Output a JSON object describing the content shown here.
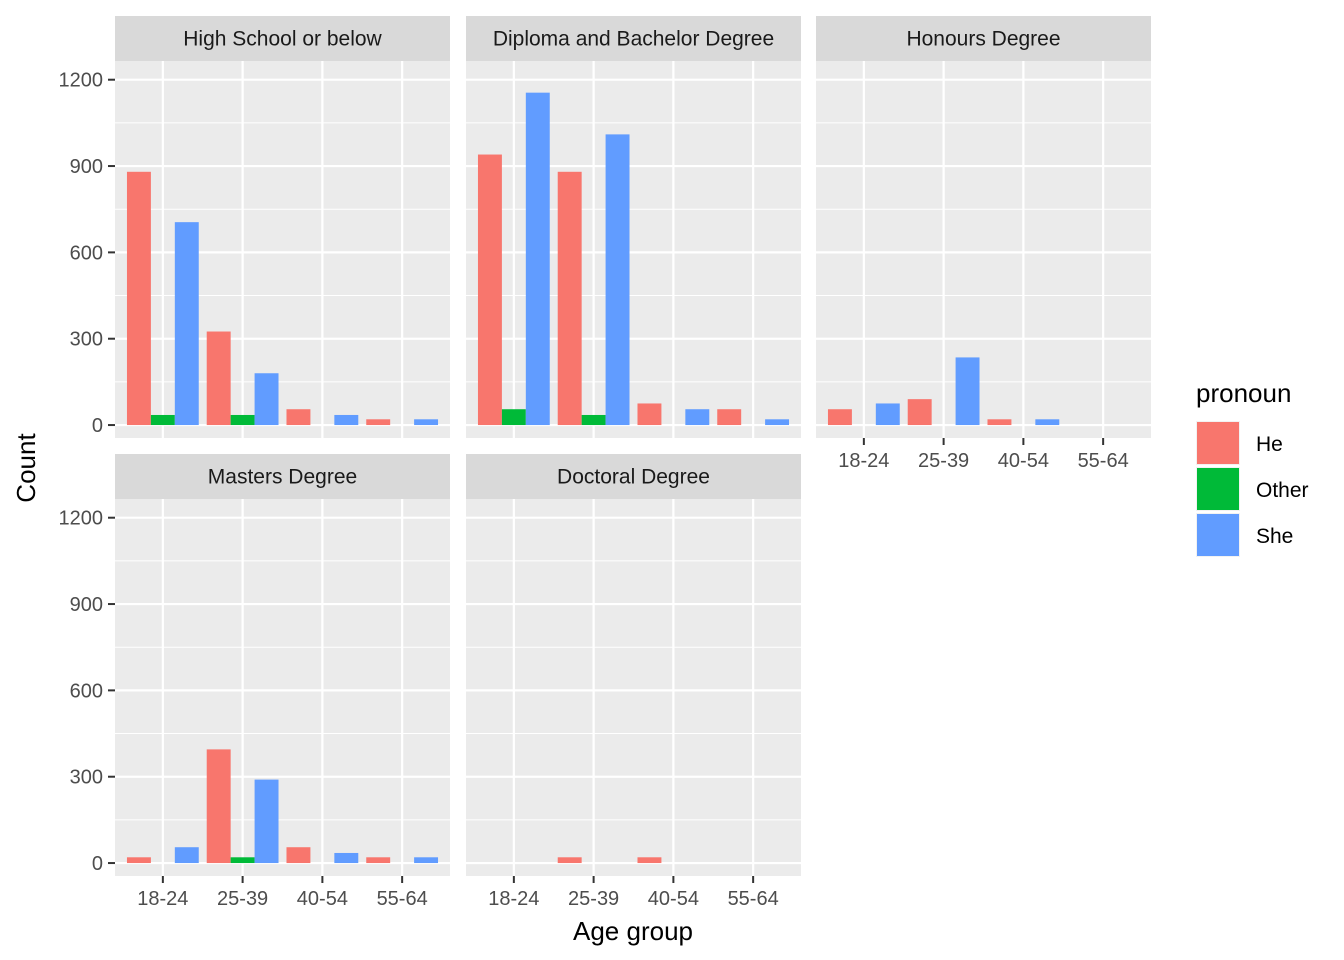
{
  "chart_data": {
    "type": "bar",
    "layout": "faceted",
    "xlabel": "Age group",
    "ylabel": "Count",
    "ylim": [
      -45,
      1265
    ],
    "y_ticks": [
      0,
      300,
      600,
      900,
      1200
    ],
    "categories": [
      "18-24",
      "25-39",
      "40-54",
      "55-64"
    ],
    "legend": {
      "title": "pronoun",
      "position": "right",
      "entries": [
        {
          "name": "He",
          "color": "#F8766D"
        },
        {
          "name": "Other",
          "color": "#00BA38"
        },
        {
          "name": "She",
          "color": "#619CFF"
        }
      ]
    },
    "grid": true,
    "facets": [
      {
        "title": "High School or below",
        "bars": {
          "He": [
            880,
            325,
            55,
            20
          ],
          "Other": [
            35,
            35,
            null,
            null
          ],
          "She": [
            705,
            180,
            35,
            20
          ]
        }
      },
      {
        "title": "Diploma and Bachelor Degree",
        "bars": {
          "He": [
            940,
            880,
            75,
            55
          ],
          "Other": [
            55,
            35,
            null,
            null
          ],
          "She": [
            1155,
            1010,
            55,
            20
          ]
        }
      },
      {
        "title": "Honours Degree",
        "bars": {
          "He": [
            55,
            90,
            20,
            null
          ],
          "Other": [
            null,
            null,
            null,
            null
          ],
          "She": [
            75,
            235,
            20,
            null
          ]
        }
      },
      {
        "title": "Masters Degree",
        "bars": {
          "He": [
            20,
            395,
            55,
            20
          ],
          "Other": [
            null,
            20,
            null,
            null
          ],
          "She": [
            55,
            290,
            35,
            20
          ]
        }
      },
      {
        "title": "Doctoral Degree",
        "bars": {
          "He": [
            null,
            20,
            20,
            null
          ],
          "Other": [
            null,
            null,
            null,
            null
          ],
          "She": [
            null,
            null,
            null,
            null
          ]
        }
      }
    ]
  }
}
